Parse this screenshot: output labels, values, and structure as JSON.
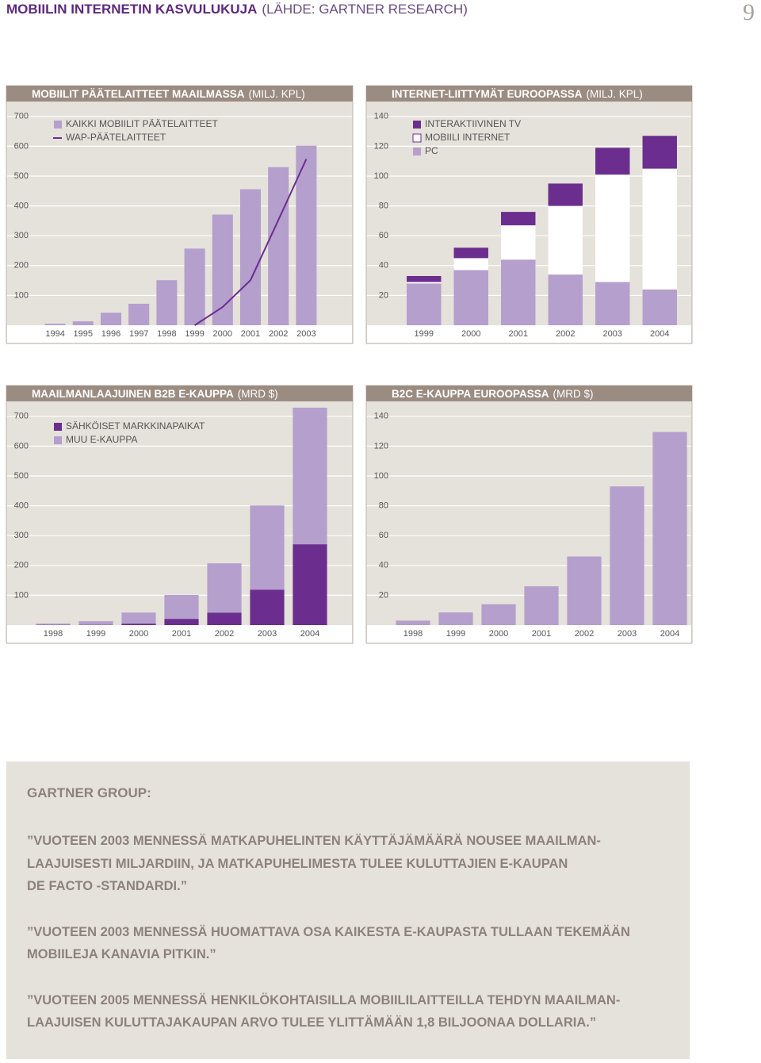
{
  "header": {
    "title": "MOBIILIN INTERNETIN KASVULUKUJA",
    "source": "(LÄHDE: GARTNER RESEARCH)",
    "page_number": "9"
  },
  "chart_data": [
    {
      "type": "bar",
      "title": "MOBIILIT PÄÄTELAITTEET MAAILMASSA",
      "title_unit": "(MILJ. KPL)",
      "categories": [
        "1994",
        "1995",
        "1996",
        "1997",
        "1998",
        "1999",
        "2000",
        "2001",
        "2002",
        "2003"
      ],
      "series": [
        {
          "name": "KAIKKI MOBIILIT PÄÄTELAITTEET",
          "color": "#b49fcd",
          "type": "bar",
          "values": [
            5,
            13,
            42,
            72,
            151,
            257,
            371,
            456,
            530,
            602
          ]
        },
        {
          "name": "WAP-PÄÄTELAITTEET",
          "color": "#6b2e8e",
          "type": "line",
          "values": [
            null,
            null,
            null,
            null,
            null,
            0,
            61,
            151,
            353,
            557
          ]
        }
      ],
      "ylim": [
        0,
        750
      ],
      "yticks": [
        100,
        200,
        300,
        400,
        500,
        600,
        700
      ],
      "grid": true
    },
    {
      "type": "stacked_bar",
      "title": "INTERNET-LIITTYMÄT EUROOPASSA",
      "title_unit": "(MILJ. KPL)",
      "categories": [
        "1999",
        "2000",
        "2001",
        "2002",
        "2003",
        "2004"
      ],
      "series": [
        {
          "name": "PC",
          "color": "#b49fcd",
          "values": [
            28,
            37,
            44,
            34,
            29,
            24
          ]
        },
        {
          "name": "MOBIILI INTERNET",
          "color": "#ffffff",
          "values": [
            1,
            8,
            23,
            46,
            72,
            81
          ]
        },
        {
          "name": "INTERAKTIIVINEN TV",
          "color": "#6b2e8e",
          "values": [
            4,
            7,
            9,
            15,
            18,
            22
          ]
        }
      ],
      "legend_reverse": true,
      "ylim": [
        0,
        150
      ],
      "yticks": [
        20,
        40,
        60,
        80,
        100,
        120,
        140
      ],
      "grid": true
    },
    {
      "type": "stacked_bar",
      "title": "MAAILMANLAAJUINEN B2B E-KAUPPA",
      "title_unit": "(MRD $)",
      "categories": [
        "1998",
        "1999",
        "2000",
        "2001",
        "2002",
        "2003",
        "2004"
      ],
      "series": [
        {
          "name": "SÄHKÖISET MARKKINAPAIKAT",
          "color": "#6b2e8e",
          "values": [
            1,
            1,
            5,
            21,
            42,
            119,
            271
          ]
        },
        {
          "name": "MUU E-KAUPPA",
          "color": "#b49fcd",
          "values": [
            4,
            12,
            37,
            80,
            165,
            282,
            458
          ]
        }
      ],
      "ylim": [
        0,
        750
      ],
      "yticks": [
        100,
        200,
        300,
        400,
        500,
        600,
        700
      ],
      "grid": true
    },
    {
      "type": "bar",
      "title": "B2C E-KAUPPA EUROOPASSA",
      "title_unit": "(MRD $)",
      "categories": [
        "1998",
        "1999",
        "2000",
        "2001",
        "2002",
        "2003",
        "2004"
      ],
      "values": [
        3,
        8.5,
        14,
        26,
        46,
        93,
        129.5
      ],
      "color": "#b49fcd",
      "ylim": [
        0,
        150
      ],
      "yticks": [
        20,
        40,
        60,
        80,
        100,
        120,
        140
      ],
      "grid": true
    }
  ],
  "quote_box": {
    "title": "GARTNER GROUP:",
    "quotes": [
      [
        "”VUOTEEN 2003 MENNESSÄ MATKAPUHELINTEN KÄYTTÄJÄMÄÄRÄ NOUSEE MAAILMAN-",
        "LAAJUISESTI MILJARDIIN, JA MATKAPUHELIMESTA TULEE KULUTTAJIEN E-KAUPAN",
        "DE FACTO -STANDARDI.”"
      ],
      [
        "”VUOTEEN 2003 MENNESSÄ HUOMATTAVA OSA KAIKESTA E-KAUPASTA TULLAAN TEKEMÄÄN",
        "MOBIILEJA KANAVIA PITKIN.”"
      ],
      [
        "”VUOTEEN 2005 MENNESSÄ HENKILÖKOHTAISILLA MOBIILILAITTEILLA TEHDYN MAAILMAN-",
        "LAAJUISEN KULUTTAJAKAUPAN ARVO TULEE YLITTÄMÄÄN 1,8 BILJOONAA DOLLARIA.”"
      ]
    ]
  }
}
